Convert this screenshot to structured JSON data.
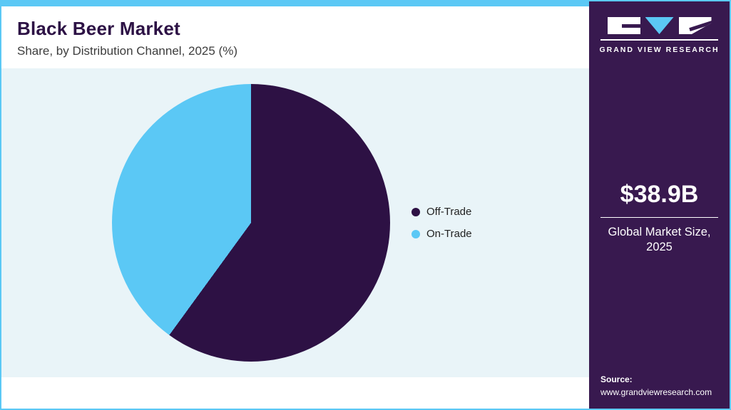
{
  "header": {
    "title": "Black Beer Market",
    "subtitle": "Share, by Distribution Channel, 2025 (%)"
  },
  "chart_data": {
    "type": "pie",
    "title": "Black Beer Market Share, by Distribution Channel, 2025 (%)",
    "start_angle_deg": 0,
    "direction": "clockwise",
    "legend_position": "right",
    "slices": [
      {
        "label": "Off-Trade",
        "value": 60,
        "color": "#2d1144"
      },
      {
        "label": "On-Trade",
        "value": 40,
        "color": "#5bc8f5"
      }
    ]
  },
  "sidebar": {
    "brand": "GRAND VIEW RESEARCH",
    "market_size": "$38.9B",
    "market_size_label": "Global Market Size, 2025",
    "source_label": "Source:",
    "source_url": "www.grandviewresearch.com"
  },
  "colors": {
    "accent_blue": "#5bc8f5",
    "dark_purple": "#2d1144",
    "sidebar_purple": "#38194f",
    "chart_bg": "#e9f4f8"
  }
}
